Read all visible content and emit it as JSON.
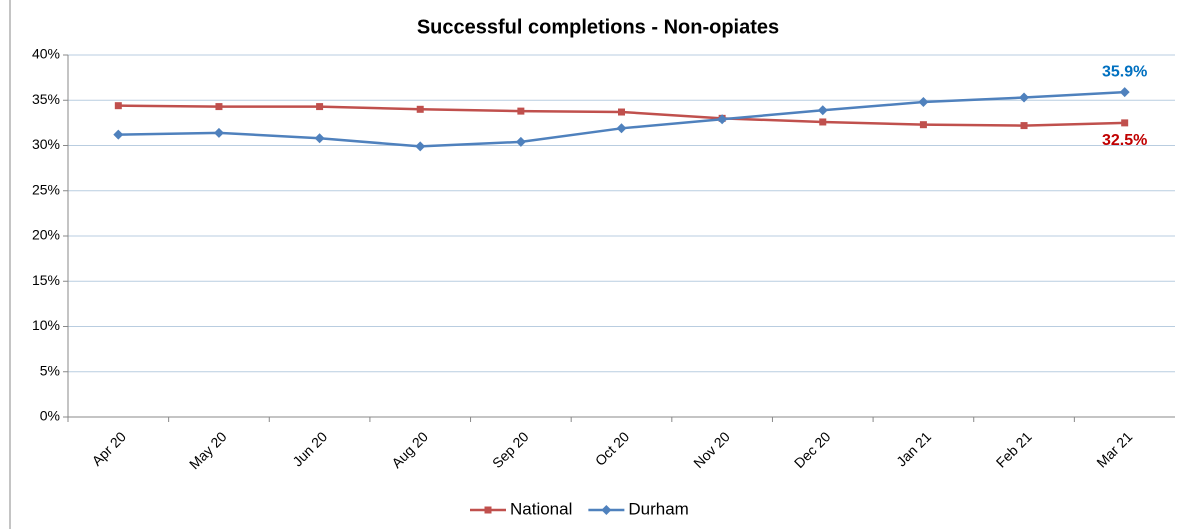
{
  "chart_data": {
    "type": "line",
    "title": "Successful completions - Non-opiates",
    "categories": [
      "Apr 20",
      "May 20",
      "Jun 20",
      "Aug 20",
      "Sep 20",
      "Oct 20",
      "Nov 20",
      "Dec 20",
      "Jan 21",
      "Feb 21",
      "Mar 21"
    ],
    "series": [
      {
        "name": "National",
        "color": "#c0504d",
        "marker": "square",
        "label_color": "#c00000",
        "values": [
          34.4,
          34.3,
          34.3,
          34.0,
          33.8,
          33.7,
          33.0,
          32.6,
          32.3,
          32.2,
          32.5
        ],
        "value_labels": [
          null,
          null,
          null,
          null,
          null,
          null,
          null,
          null,
          null,
          null,
          "32.5%"
        ]
      },
      {
        "name": "Durham",
        "color": "#4f81bd",
        "marker": "diamond",
        "label_color": "#0070c0",
        "values": [
          31.2,
          31.4,
          30.8,
          29.9,
          30.4,
          31.9,
          32.9,
          33.9,
          34.8,
          35.3,
          35.9
        ],
        "value_labels": [
          null,
          null,
          null,
          null,
          null,
          null,
          null,
          null,
          null,
          null,
          "35.9%"
        ]
      }
    ],
    "ylim": [
      0,
      40
    ],
    "yticks": [
      {
        "value": 0,
        "label": "0%"
      },
      {
        "value": 5,
        "label": "5%"
      },
      {
        "value": 10,
        "label": "10%"
      },
      {
        "value": 15,
        "label": "15%"
      },
      {
        "value": 20,
        "label": "20%"
      },
      {
        "value": 25,
        "label": "25%"
      },
      {
        "value": 30,
        "label": "30%"
      },
      {
        "value": 35,
        "label": "35%"
      },
      {
        "value": 40,
        "label": "40%"
      }
    ],
    "grid": true,
    "legend": "bottom"
  }
}
